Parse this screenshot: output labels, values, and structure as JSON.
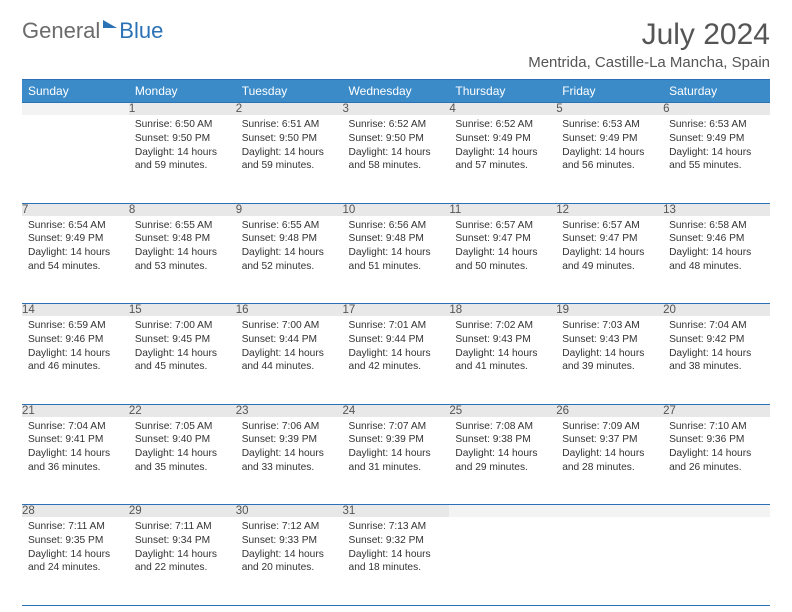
{
  "logo": {
    "text1": "General",
    "text2": "Blue"
  },
  "title": "July 2024",
  "location": "Mentrida, Castille-La Mancha, Spain",
  "day_headers": [
    "Sunday",
    "Monday",
    "Tuesday",
    "Wednesday",
    "Thursday",
    "Friday",
    "Saturday"
  ],
  "colors": {
    "header_bg": "#3b8bc9",
    "header_text": "#ffffff",
    "rule": "#2a72b5",
    "daynum_bg": "#e8e8e8",
    "text": "#333333",
    "title_text": "#555555",
    "logo_gray": "#6b6b6b",
    "logo_blue": "#2a72b5",
    "background": "#ffffff"
  },
  "typography": {
    "title_fontsize": 30,
    "location_fontsize": 15,
    "dayheader_fontsize": 12,
    "daynum_fontsize": 11.5,
    "cell_fontsize": 10.2,
    "logo_fontsize": 22
  },
  "weeks": [
    [
      {
        "num": "",
        "sunrise": "",
        "sunset": "",
        "daylight": ""
      },
      {
        "num": "1",
        "sunrise": "Sunrise: 6:50 AM",
        "sunset": "Sunset: 9:50 PM",
        "daylight": "Daylight: 14 hours and 59 minutes."
      },
      {
        "num": "2",
        "sunrise": "Sunrise: 6:51 AM",
        "sunset": "Sunset: 9:50 PM",
        "daylight": "Daylight: 14 hours and 59 minutes."
      },
      {
        "num": "3",
        "sunrise": "Sunrise: 6:52 AM",
        "sunset": "Sunset: 9:50 PM",
        "daylight": "Daylight: 14 hours and 58 minutes."
      },
      {
        "num": "4",
        "sunrise": "Sunrise: 6:52 AM",
        "sunset": "Sunset: 9:49 PM",
        "daylight": "Daylight: 14 hours and 57 minutes."
      },
      {
        "num": "5",
        "sunrise": "Sunrise: 6:53 AM",
        "sunset": "Sunset: 9:49 PM",
        "daylight": "Daylight: 14 hours and 56 minutes."
      },
      {
        "num": "6",
        "sunrise": "Sunrise: 6:53 AM",
        "sunset": "Sunset: 9:49 PM",
        "daylight": "Daylight: 14 hours and 55 minutes."
      }
    ],
    [
      {
        "num": "7",
        "sunrise": "Sunrise: 6:54 AM",
        "sunset": "Sunset: 9:49 PM",
        "daylight": "Daylight: 14 hours and 54 minutes."
      },
      {
        "num": "8",
        "sunrise": "Sunrise: 6:55 AM",
        "sunset": "Sunset: 9:48 PM",
        "daylight": "Daylight: 14 hours and 53 minutes."
      },
      {
        "num": "9",
        "sunrise": "Sunrise: 6:55 AM",
        "sunset": "Sunset: 9:48 PM",
        "daylight": "Daylight: 14 hours and 52 minutes."
      },
      {
        "num": "10",
        "sunrise": "Sunrise: 6:56 AM",
        "sunset": "Sunset: 9:48 PM",
        "daylight": "Daylight: 14 hours and 51 minutes."
      },
      {
        "num": "11",
        "sunrise": "Sunrise: 6:57 AM",
        "sunset": "Sunset: 9:47 PM",
        "daylight": "Daylight: 14 hours and 50 minutes."
      },
      {
        "num": "12",
        "sunrise": "Sunrise: 6:57 AM",
        "sunset": "Sunset: 9:47 PM",
        "daylight": "Daylight: 14 hours and 49 minutes."
      },
      {
        "num": "13",
        "sunrise": "Sunrise: 6:58 AM",
        "sunset": "Sunset: 9:46 PM",
        "daylight": "Daylight: 14 hours and 48 minutes."
      }
    ],
    [
      {
        "num": "14",
        "sunrise": "Sunrise: 6:59 AM",
        "sunset": "Sunset: 9:46 PM",
        "daylight": "Daylight: 14 hours and 46 minutes."
      },
      {
        "num": "15",
        "sunrise": "Sunrise: 7:00 AM",
        "sunset": "Sunset: 9:45 PM",
        "daylight": "Daylight: 14 hours and 45 minutes."
      },
      {
        "num": "16",
        "sunrise": "Sunrise: 7:00 AM",
        "sunset": "Sunset: 9:44 PM",
        "daylight": "Daylight: 14 hours and 44 minutes."
      },
      {
        "num": "17",
        "sunrise": "Sunrise: 7:01 AM",
        "sunset": "Sunset: 9:44 PM",
        "daylight": "Daylight: 14 hours and 42 minutes."
      },
      {
        "num": "18",
        "sunrise": "Sunrise: 7:02 AM",
        "sunset": "Sunset: 9:43 PM",
        "daylight": "Daylight: 14 hours and 41 minutes."
      },
      {
        "num": "19",
        "sunrise": "Sunrise: 7:03 AM",
        "sunset": "Sunset: 9:43 PM",
        "daylight": "Daylight: 14 hours and 39 minutes."
      },
      {
        "num": "20",
        "sunrise": "Sunrise: 7:04 AM",
        "sunset": "Sunset: 9:42 PM",
        "daylight": "Daylight: 14 hours and 38 minutes."
      }
    ],
    [
      {
        "num": "21",
        "sunrise": "Sunrise: 7:04 AM",
        "sunset": "Sunset: 9:41 PM",
        "daylight": "Daylight: 14 hours and 36 minutes."
      },
      {
        "num": "22",
        "sunrise": "Sunrise: 7:05 AM",
        "sunset": "Sunset: 9:40 PM",
        "daylight": "Daylight: 14 hours and 35 minutes."
      },
      {
        "num": "23",
        "sunrise": "Sunrise: 7:06 AM",
        "sunset": "Sunset: 9:39 PM",
        "daylight": "Daylight: 14 hours and 33 minutes."
      },
      {
        "num": "24",
        "sunrise": "Sunrise: 7:07 AM",
        "sunset": "Sunset: 9:39 PM",
        "daylight": "Daylight: 14 hours and 31 minutes."
      },
      {
        "num": "25",
        "sunrise": "Sunrise: 7:08 AM",
        "sunset": "Sunset: 9:38 PM",
        "daylight": "Daylight: 14 hours and 29 minutes."
      },
      {
        "num": "26",
        "sunrise": "Sunrise: 7:09 AM",
        "sunset": "Sunset: 9:37 PM",
        "daylight": "Daylight: 14 hours and 28 minutes."
      },
      {
        "num": "27",
        "sunrise": "Sunrise: 7:10 AM",
        "sunset": "Sunset: 9:36 PM",
        "daylight": "Daylight: 14 hours and 26 minutes."
      }
    ],
    [
      {
        "num": "28",
        "sunrise": "Sunrise: 7:11 AM",
        "sunset": "Sunset: 9:35 PM",
        "daylight": "Daylight: 14 hours and 24 minutes."
      },
      {
        "num": "29",
        "sunrise": "Sunrise: 7:11 AM",
        "sunset": "Sunset: 9:34 PM",
        "daylight": "Daylight: 14 hours and 22 minutes."
      },
      {
        "num": "30",
        "sunrise": "Sunrise: 7:12 AM",
        "sunset": "Sunset: 9:33 PM",
        "daylight": "Daylight: 14 hours and 20 minutes."
      },
      {
        "num": "31",
        "sunrise": "Sunrise: 7:13 AM",
        "sunset": "Sunset: 9:32 PM",
        "daylight": "Daylight: 14 hours and 18 minutes."
      },
      {
        "num": "",
        "sunrise": "",
        "sunset": "",
        "daylight": ""
      },
      {
        "num": "",
        "sunrise": "",
        "sunset": "",
        "daylight": ""
      },
      {
        "num": "",
        "sunrise": "",
        "sunset": "",
        "daylight": ""
      }
    ]
  ]
}
